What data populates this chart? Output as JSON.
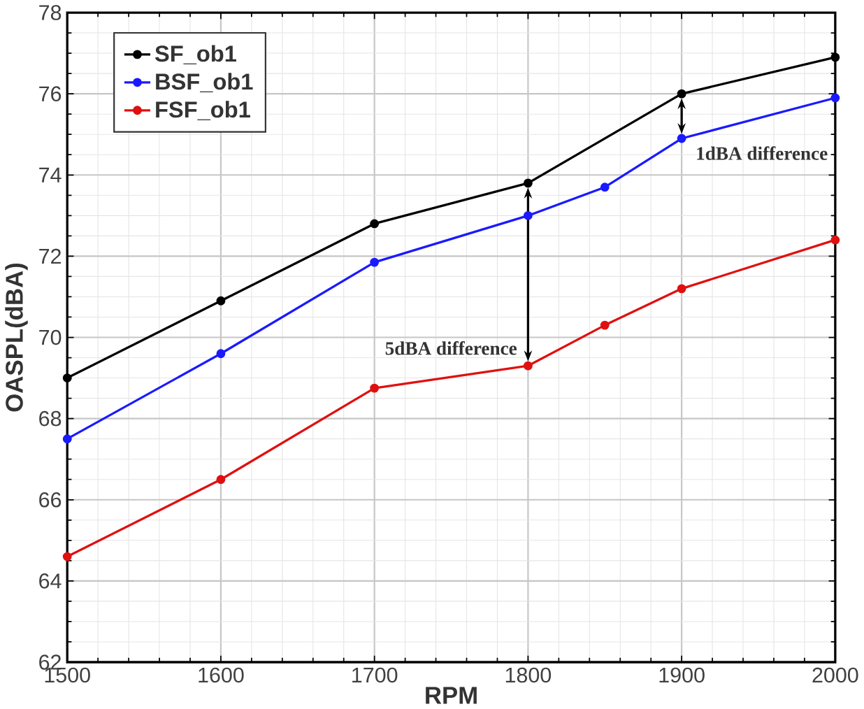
{
  "chart_data": {
    "type": "line",
    "xlabel": "RPM",
    "ylabel": "OASPL(dBA)",
    "xlim": [
      1500,
      2000
    ],
    "xticks": [
      1500,
      1600,
      1700,
      1800,
      1900,
      2000
    ],
    "ylim": [
      62,
      78
    ],
    "yticks": [
      62,
      64,
      66,
      68,
      70,
      72,
      74,
      76,
      78
    ],
    "grid": true,
    "legend": "top left",
    "marker": "circle",
    "line_style": "solid",
    "series": [
      {
        "name": "SF_ob1",
        "color": "#000000",
        "x": [
          1500,
          1600,
          1700,
          1800,
          1900,
          2000
        ],
        "values": [
          69.0,
          70.9,
          72.8,
          73.8,
          76.0,
          76.9
        ]
      },
      {
        "name": "BSF_ob1",
        "color": "#1a1aff",
        "x": [
          1500,
          1600,
          1700,
          1800,
          1850,
          1900,
          2000
        ],
        "values": [
          67.5,
          69.6,
          71.85,
          73.0,
          73.7,
          74.9,
          75.9
        ]
      },
      {
        "name": "FSF_ob1",
        "color": "#e01010",
        "x": [
          1500,
          1600,
          1700,
          1800,
          1850,
          1900,
          2000
        ],
        "values": [
          64.6,
          66.5,
          68.75,
          69.3,
          70.3,
          71.2,
          72.4
        ]
      }
    ],
    "annotations": [
      {
        "text": "5dBA difference",
        "x": 1800,
        "y": 69.3
      },
      {
        "text": "1dBA difference",
        "x": 1900,
        "y": 74.9
      }
    ]
  }
}
